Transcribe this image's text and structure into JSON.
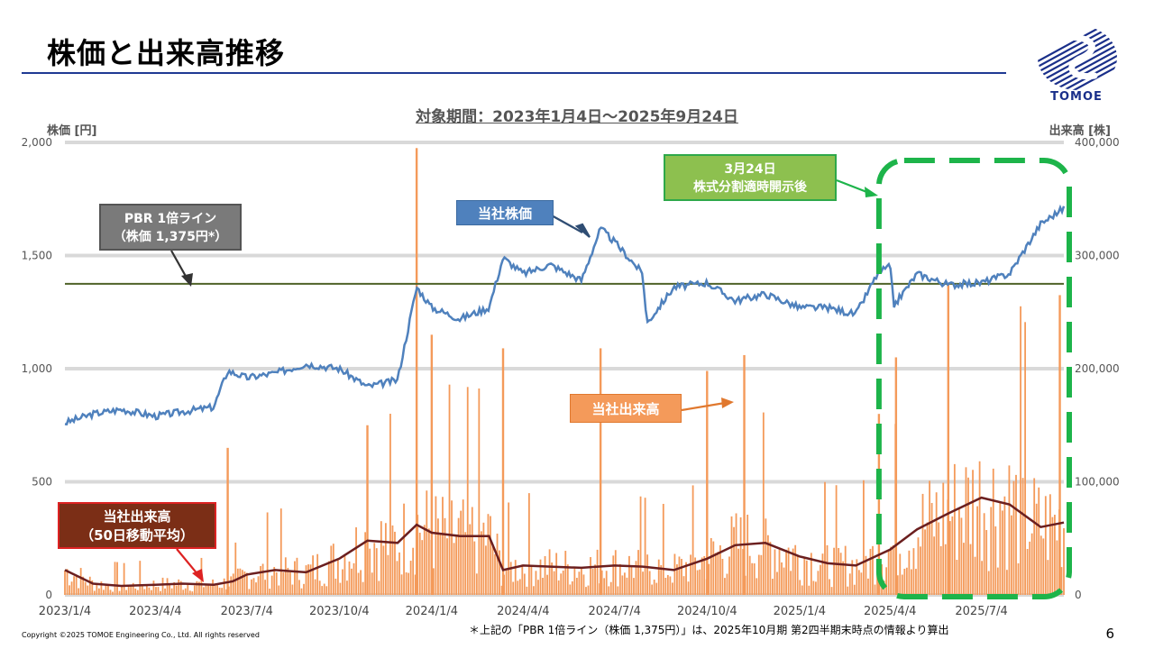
{
  "slide": {
    "title": "株価と出来高推移",
    "period": "対象期間：2023年1月4日～2025年9月24日",
    "footnote": "＊上記の「PBR 1倍ライン（株価 1,375円）」は、2025年10月期 第2四半期末時点の情報より算出",
    "copyright": "Copyright ©2025 TOMOE Engineering Co., Ltd. All rights reserved",
    "page_number": "6",
    "logo_text": "TOMOE",
    "logo_color": "#1a2f8a"
  },
  "annotations": {
    "pbr_line_l1": "PBR 1倍ライン",
    "pbr_line_l2": "（株価 1,375円*）",
    "price_label": "当社株価",
    "volume_label": "当社出来高",
    "ma_label_l1": "当社出来高",
    "ma_label_l2": "（50日移動平均）",
    "note_l1": "3月24日",
    "note_l2": "株式分割適時開示後"
  },
  "chart_data": {
    "type": "line",
    "y_left_label": "株価 [円]",
    "y_right_label": "出来高 [株]",
    "y_left_ticks": [
      "2,000",
      "1,500",
      "1,000",
      "500",
      "0"
    ],
    "y_right_ticks": [
      "400,000",
      "300,000",
      "200,000",
      "100,000",
      "0"
    ],
    "y_left_range": [
      0,
      2000
    ],
    "y_right_range": [
      0,
      400000
    ],
    "x_ticks": [
      "2023/1/4",
      "2023/4/4",
      "2023/7/4",
      "2023/10/4",
      "2024/1/4",
      "2024/4/4",
      "2024/7/4",
      "2024/10/4",
      "2025/1/4",
      "2025/4/4",
      "2025/7/4"
    ],
    "pbr_line": 1375,
    "colors": {
      "price": "#4f81bd",
      "volume": "#f49a5a",
      "ma": "#6b1f1f",
      "pbr": "#4f6228",
      "highlight": "#1db44a"
    },
    "series": [
      {
        "name": "当社株価",
        "x": [
          "2023/1/4",
          "2023/2/1",
          "2023/3/1",
          "2023/4/4",
          "2023/5/1",
          "2023/6/1",
          "2023/6/15",
          "2023/7/4",
          "2023/8/1",
          "2023/9/1",
          "2023/10/4",
          "2023/11/1",
          "2023/12/1",
          "2023/12/20",
          "2024/1/4",
          "2024/2/1",
          "2024/3/1",
          "2024/3/15",
          "2024/4/4",
          "2024/5/1",
          "2024/6/1",
          "2024/6/20",
          "2024/7/4",
          "2024/8/1",
          "2024/8/5",
          "2024/9/1",
          "2024/10/4",
          "2024/11/1",
          "2024/12/1",
          "2025/1/4",
          "2025/2/1",
          "2025/3/1",
          "2025/3/24",
          "2025/4/4",
          "2025/4/8",
          "2025/5/1",
          "2025/6/1",
          "2025/7/4",
          "2025/8/1",
          "2025/9/1",
          "2025/9/24"
        ],
        "values": [
          760,
          800,
          820,
          790,
          810,
          830,
          990,
          960,
          980,
          1020,
          1000,
          920,
          950,
          1360,
          1270,
          1220,
          1270,
          1490,
          1420,
          1460,
          1390,
          1620,
          1560,
          1420,
          1200,
          1360,
          1380,
          1300,
          1330,
          1270,
          1270,
          1240,
          1430,
          1450,
          1280,
          1420,
          1370,
          1380,
          1420,
          1640,
          1710
        ]
      },
      {
        "name": "当社出来高（50日移動平均）",
        "x": [
          "2023/1/4",
          "2023/2/1",
          "2023/3/1",
          "2023/4/4",
          "2023/5/1",
          "2023/6/1",
          "2023/6/20",
          "2023/7/4",
          "2023/8/1",
          "2023/9/1",
          "2023/10/4",
          "2023/11/1",
          "2023/12/1",
          "2023/12/20",
          "2024/1/4",
          "2024/2/1",
          "2024/3/1",
          "2024/3/15",
          "2024/4/4",
          "2024/5/1",
          "2024/6/1",
          "2024/7/4",
          "2024/8/1",
          "2024/9/1",
          "2024/10/4",
          "2024/11/1",
          "2024/12/1",
          "2025/1/4",
          "2025/2/1",
          "2025/3/1",
          "2025/4/4",
          "2025/5/1",
          "2025/6/1",
          "2025/7/4",
          "2025/8/1",
          "2025/9/1",
          "2025/9/24"
        ],
        "values": [
          22000,
          10000,
          8000,
          9000,
          10000,
          9000,
          12000,
          18000,
          22000,
          20000,
          32000,
          48000,
          46000,
          62000,
          55000,
          52000,
          52000,
          22000,
          26000,
          25000,
          24000,
          26000,
          25000,
          22000,
          32000,
          44000,
          46000,
          34000,
          28000,
          26000,
          40000,
          58000,
          72000,
          86000,
          80000,
          60000,
          64000
        ]
      },
      {
        "name": "当社出来高",
        "x": [
          "2023/6/15",
          "2023/11/1",
          "2023/12/20",
          "2024/1/4",
          "2024/3/15",
          "2024/6/20",
          "2024/10/4",
          "2024/11/10",
          "2025/3/24",
          "2025/4/10",
          "2025/6/1",
          "2025/9/20"
        ],
        "values": [
          130000,
          150000,
          395000,
          230000,
          218000,
          218000,
          198000,
          212000,
          160000,
          210000,
          275000,
          265000
        ]
      }
    ]
  }
}
